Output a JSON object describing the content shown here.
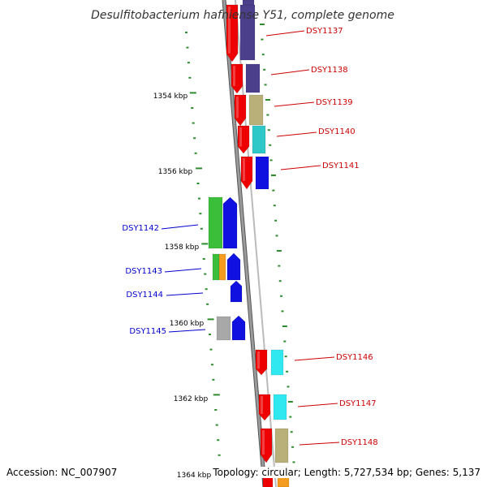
{
  "title": "Desulfitobacterium hafniense Y51, complete genome",
  "accession_text": "Accession: NC_007907",
  "topology_text": "Topology: circular; Length: 5,727,534 bp; Genes: 5,137",
  "colors": {
    "backbone": "#8a8a8a",
    "tick": "#2e8b2e",
    "plus_label": "#cc0000",
    "minus_label": "#0000cc"
  },
  "kbp_ticks": [
    "1354 kbp",
    "1356 kbp",
    "1358 kbp",
    "1360 kbp",
    "1362 kbp",
    "1364 kbp"
  ],
  "genes": [
    {
      "id": "DSY1137",
      "strand": "plus",
      "color": "#4b3f8c"
    },
    {
      "id": "DSY1138",
      "strand": "plus",
      "color": "#4b3f8c"
    },
    {
      "id": "DSY1139",
      "strand": "plus",
      "color": "#b8b078"
    },
    {
      "id": "DSY1140",
      "strand": "plus",
      "color": "#2ec8c8"
    },
    {
      "id": "DSY1141",
      "strand": "plus",
      "color": "#1010e0"
    },
    {
      "id": "DSY1142",
      "strand": "minus",
      "color": "#1010e0"
    },
    {
      "id": "DSY1143",
      "strand": "minus",
      "color": "#1010e0"
    },
    {
      "id": "DSY1144",
      "strand": "minus",
      "color": "#1010e0"
    },
    {
      "id": "DSY1145",
      "strand": "minus",
      "color": "#1010e0"
    },
    {
      "id": "DSY1146",
      "strand": "plus",
      "color": "#30e8f0"
    },
    {
      "id": "DSY1147",
      "strand": "plus",
      "color": "#30e8f0"
    },
    {
      "id": "DSY1148",
      "strand": "plus",
      "color": "#b8b078"
    }
  ]
}
